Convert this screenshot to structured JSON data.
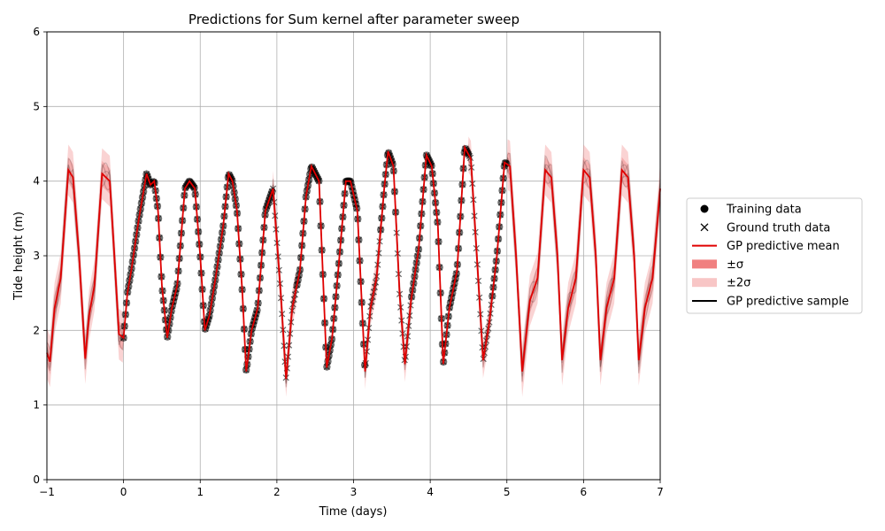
{
  "chart_data": {
    "type": "line",
    "title": "Predictions for Sum kernel after parameter sweep",
    "xlabel": "Time (days)",
    "ylabel": "Tide height (m)",
    "xlim": [
      -1,
      7
    ],
    "ylim": [
      0,
      6
    ],
    "xticks": [
      "−1",
      "0",
      "1",
      "2",
      "3",
      "4",
      "5",
      "6",
      "7"
    ],
    "yticks": [
      "0",
      "1",
      "2",
      "3",
      "4",
      "5",
      "6"
    ],
    "grid": true,
    "legend_position": "right",
    "legend": [
      {
        "label": "Training data",
        "marker": "circle"
      },
      {
        "label": "Ground truth data",
        "marker": "x"
      },
      {
        "label": "GP predictive mean",
        "marker": "red-line"
      },
      {
        "label": "±σ",
        "marker": "dark-red-patch"
      },
      {
        "label": "±2σ",
        "marker": "light-red-patch"
      },
      {
        "label": "GP predictive sample",
        "marker": "black-line"
      }
    ],
    "training_range": [
      0,
      5
    ],
    "gap_ranges": [
      [
        1.95,
        2.05
      ],
      [
        2.05,
        2.25
      ],
      [
        3.15,
        3.35
      ],
      [
        3.55,
        3.75
      ],
      [
        4.5,
        4.8
      ]
    ],
    "mean_curve": {
      "x": [
        -1.0,
        -0.96,
        -0.9,
        -0.82,
        -0.72,
        -0.66,
        -0.58,
        -0.5,
        -0.45,
        -0.38,
        -0.28,
        -0.18,
        -0.12,
        -0.06,
        0.0,
        0.05,
        0.1,
        0.2,
        0.3,
        0.35,
        0.4,
        0.45,
        0.5,
        0.57,
        0.63,
        0.7,
        0.8,
        0.86,
        0.93,
        1.0,
        1.06,
        1.12,
        1.2,
        1.3,
        1.37,
        1.42,
        1.48,
        1.55,
        1.6,
        1.67,
        1.75,
        1.85,
        1.95,
        2.05,
        2.12,
        2.2,
        2.3,
        2.38,
        2.45,
        2.55,
        2.65,
        2.72,
        2.8,
        2.9,
        2.96,
        3.05,
        3.15,
        3.22,
        3.3,
        3.4,
        3.45,
        3.52,
        3.6,
        3.67,
        3.75,
        3.85,
        3.95,
        4.02,
        4.1,
        4.17,
        4.25,
        4.35,
        4.45,
        4.53,
        4.62,
        4.69,
        4.77,
        4.87,
        4.97,
        5.04,
        5.12,
        5.2,
        5.3,
        5.4,
        5.5,
        5.58,
        5.66,
        5.72,
        5.8,
        5.9,
        6.0,
        6.08,
        6.16,
        6.22,
        6.3,
        6.4,
        6.5,
        6.58,
        6.66,
        6.72,
        6.8,
        6.9,
        7.0
      ],
      "y": [
        1.7,
        1.58,
        2.3,
        2.7,
        4.15,
        4.05,
        3.0,
        1.62,
        2.2,
        2.6,
        4.1,
        4.0,
        3.0,
        1.95,
        1.9,
        2.5,
        2.8,
        3.5,
        4.1,
        3.95,
        4.0,
        3.6,
        2.6,
        1.9,
        2.3,
        2.6,
        3.9,
        4.0,
        3.9,
        3.0,
        2.0,
        2.2,
        2.7,
        3.4,
        4.1,
        4.0,
        3.6,
        2.5,
        1.45,
        2.0,
        2.3,
        3.6,
        3.9,
        2.5,
        1.35,
        2.3,
        2.8,
        3.8,
        4.2,
        4.0,
        1.5,
        1.9,
        2.8,
        4.0,
        4.0,
        3.6,
        1.45,
        2.3,
        2.7,
        3.9,
        4.4,
        4.2,
        2.5,
        1.55,
        2.4,
        3.1,
        4.35,
        4.2,
        3.4,
        1.55,
        2.3,
        2.8,
        4.45,
        4.3,
        2.8,
        1.6,
        2.1,
        3.0,
        4.25,
        4.2,
        3.0,
        1.45,
        2.4,
        2.7,
        4.15,
        4.05,
        3.0,
        1.6,
        2.3,
        2.7,
        4.15,
        4.05,
        3.0,
        1.6,
        2.3,
        2.7,
        4.15,
        4.05,
        3.0,
        1.6,
        2.3,
        2.7,
        3.9
      ]
    }
  }
}
